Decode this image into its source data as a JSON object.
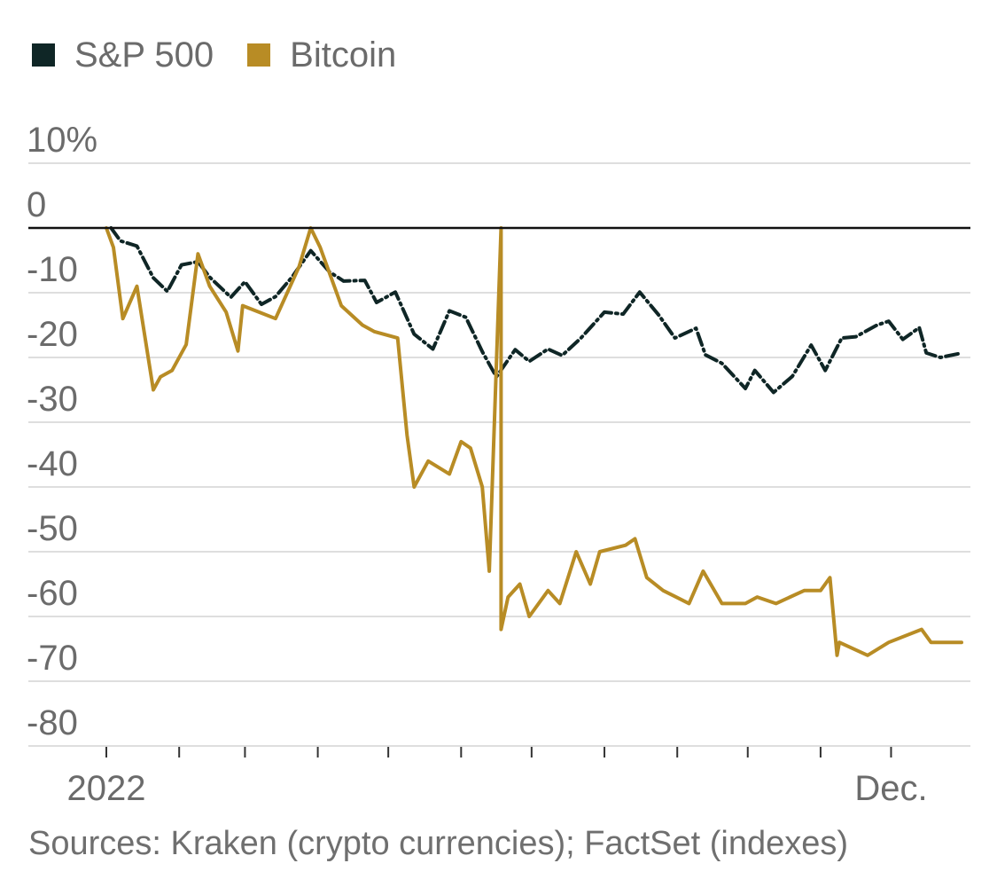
{
  "legend": {
    "items": [
      {
        "label": "S&P 500",
        "color": "#0f2626"
      },
      {
        "label": "Bitcoin",
        "color": "#b88c25"
      }
    ]
  },
  "source_note": "Sources: Kraken (crypto currencies); FactSet (indexes)",
  "chart_data": {
    "type": "line",
    "title": "",
    "xlabel": "",
    "ylabel": "",
    "ylim": [
      -80,
      10
    ],
    "y_ticks": [
      10,
      0,
      -10,
      -20,
      -30,
      -40,
      -50,
      -60,
      -70,
      -80
    ],
    "y_tick_labels": [
      "10%",
      "0",
      "-10",
      "-20",
      "-30",
      "-40",
      "-50",
      "-60",
      "-70",
      "-80"
    ],
    "x_range": [
      "2022-01-01",
      "2022-12-31"
    ],
    "x_tick_dates": [
      "2022-01-01",
      "2022-02-01",
      "2022-03-01",
      "2022-04-01",
      "2022-05-01",
      "2022-06-01",
      "2022-07-01",
      "2022-08-01",
      "2022-09-01",
      "2022-10-01",
      "2022-11-01",
      "2022-12-01"
    ],
    "x_tick_labels": [
      "2022",
      "",
      "",
      "",
      "",
      "",
      "",
      "",
      "",
      "",
      "",
      "Dec."
    ],
    "grid": true,
    "zero_line": true,
    "legend_position": "top-left",
    "series": [
      {
        "name": "S&P 500",
        "color": "#0f2626",
        "style": "dash-dot",
        "points": [
          [
            "2022-01-03",
            0
          ],
          [
            "2022-01-07",
            -2
          ],
          [
            "2022-01-14",
            -2.8
          ],
          [
            "2022-01-21",
            -7.7
          ],
          [
            "2022-01-27",
            -9.8
          ],
          [
            "2022-02-02",
            -5.7
          ],
          [
            "2022-02-09",
            -5.2
          ],
          [
            "2022-02-14",
            -7.6
          ],
          [
            "2022-02-23",
            -10.7
          ],
          [
            "2022-03-01",
            -8.3
          ],
          [
            "2022-03-08",
            -11.8
          ],
          [
            "2022-03-14",
            -10.6
          ],
          [
            "2022-03-21",
            -7.6
          ],
          [
            "2022-03-29",
            -3.5
          ],
          [
            "2022-04-06",
            -6.8
          ],
          [
            "2022-04-12",
            -8.2
          ],
          [
            "2022-04-21",
            -8.1
          ],
          [
            "2022-04-26",
            -11.5
          ],
          [
            "2022-05-04",
            -9.9
          ],
          [
            "2022-05-12",
            -16.4
          ],
          [
            "2022-05-20",
            -18.7
          ],
          [
            "2022-05-27",
            -12.8
          ],
          [
            "2022-06-03",
            -13.8
          ],
          [
            "2022-06-10",
            -19.1
          ],
          [
            "2022-06-16",
            -23.0
          ],
          [
            "2022-06-24",
            -18.8
          ],
          [
            "2022-06-30",
            -20.6
          ],
          [
            "2022-07-08",
            -18.7
          ],
          [
            "2022-07-14",
            -19.7
          ],
          [
            "2022-07-22",
            -17.0
          ],
          [
            "2022-08-01",
            -13.0
          ],
          [
            "2022-08-09",
            -13.3
          ],
          [
            "2022-08-16",
            -9.9
          ],
          [
            "2022-08-24",
            -13.4
          ],
          [
            "2022-08-31",
            -17.0
          ],
          [
            "2022-09-09",
            -15.5
          ],
          [
            "2022-09-13",
            -19.6
          ],
          [
            "2022-09-20",
            -20.9
          ],
          [
            "2022-09-30",
            -24.8
          ],
          [
            "2022-10-04",
            -22.0
          ],
          [
            "2022-10-12",
            -25.4
          ],
          [
            "2022-10-20",
            -22.9
          ],
          [
            "2022-10-28",
            -18.1
          ],
          [
            "2022-11-03",
            -22.0
          ],
          [
            "2022-11-10",
            -17.0
          ],
          [
            "2022-11-16",
            -16.8
          ],
          [
            "2022-11-25",
            -15.0
          ],
          [
            "2022-11-30",
            -14.4
          ],
          [
            "2022-12-06",
            -17.2
          ],
          [
            "2022-12-13",
            -15.4
          ],
          [
            "2022-12-16",
            -19.3
          ],
          [
            "2022-12-22",
            -20.0
          ],
          [
            "2022-12-30",
            -19.4
          ]
        ]
      },
      {
        "name": "Bitcoin",
        "color": "#b88c25",
        "style": "solid",
        "points": [
          [
            "2022-01-01",
            0
          ],
          [
            "2022-01-04",
            -3
          ],
          [
            "2022-01-08",
            -14
          ],
          [
            "2022-01-14",
            -9
          ],
          [
            "2022-01-21",
            -25
          ],
          [
            "2022-01-24",
            -23
          ],
          [
            "2022-01-29",
            -22
          ],
          [
            "2022-02-04",
            -18
          ],
          [
            "2022-02-09",
            -4
          ],
          [
            "2022-02-14",
            -9
          ],
          [
            "2022-02-21",
            -13
          ],
          [
            "2022-02-26",
            -19
          ],
          [
            "2022-02-28",
            -12
          ],
          [
            "2022-03-07",
            -13
          ],
          [
            "2022-03-14",
            -14
          ],
          [
            "2022-03-24",
            -6
          ],
          [
            "2022-03-29",
            0
          ],
          [
            "2022-04-02",
            -3
          ],
          [
            "2022-04-11",
            -12
          ],
          [
            "2022-04-20",
            -15
          ],
          [
            "2022-04-25",
            -16
          ],
          [
            "2022-05-05",
            -17
          ],
          [
            "2022-05-09",
            -32
          ],
          [
            "2022-05-12",
            -40
          ],
          [
            "2022-05-18",
            -36
          ],
          [
            "2022-05-27",
            -38
          ],
          [
            "2022-06-01",
            -33
          ],
          [
            "2022-06-05",
            -34
          ],
          [
            "2022-06-10",
            -40
          ],
          [
            "2022-06-13",
            -53
          ],
          [
            "2022-06-18,",
            0
          ],
          [
            "2022-06-18",
            -62
          ],
          [
            "2022-06-21",
            -57
          ],
          [
            "2022-06-26",
            -55
          ],
          [
            "2022-06-30",
            -60
          ],
          [
            "2022-07-08",
            -56
          ],
          [
            "2022-07-13",
            -58
          ],
          [
            "2022-07-20",
            -50
          ],
          [
            "2022-07-26",
            -55
          ],
          [
            "2022-07-30",
            -50
          ],
          [
            "2022-08-10",
            -49
          ],
          [
            "2022-08-14",
            -48
          ],
          [
            "2022-08-19",
            -54
          ],
          [
            "2022-08-26",
            -56
          ],
          [
            "2022-09-06",
            -58
          ],
          [
            "2022-09-12",
            -53
          ],
          [
            "2022-09-20",
            -58
          ],
          [
            "2022-09-30",
            -58
          ],
          [
            "2022-10-05",
            -57
          ],
          [
            "2022-10-13",
            -58
          ],
          [
            "2022-10-25",
            -56
          ],
          [
            "2022-11-01",
            -56
          ],
          [
            "2022-11-05",
            -54
          ],
          [
            "2022-11-08",
            -66
          ],
          [
            "2022-11-09",
            -64
          ],
          [
            "2022-11-21",
            -66
          ],
          [
            "2022-11-30",
            -64
          ],
          [
            "2022-12-14",
            -62
          ],
          [
            "2022-12-18",
            -64
          ],
          [
            "2022-12-31",
            -64
          ]
        ]
      }
    ]
  }
}
